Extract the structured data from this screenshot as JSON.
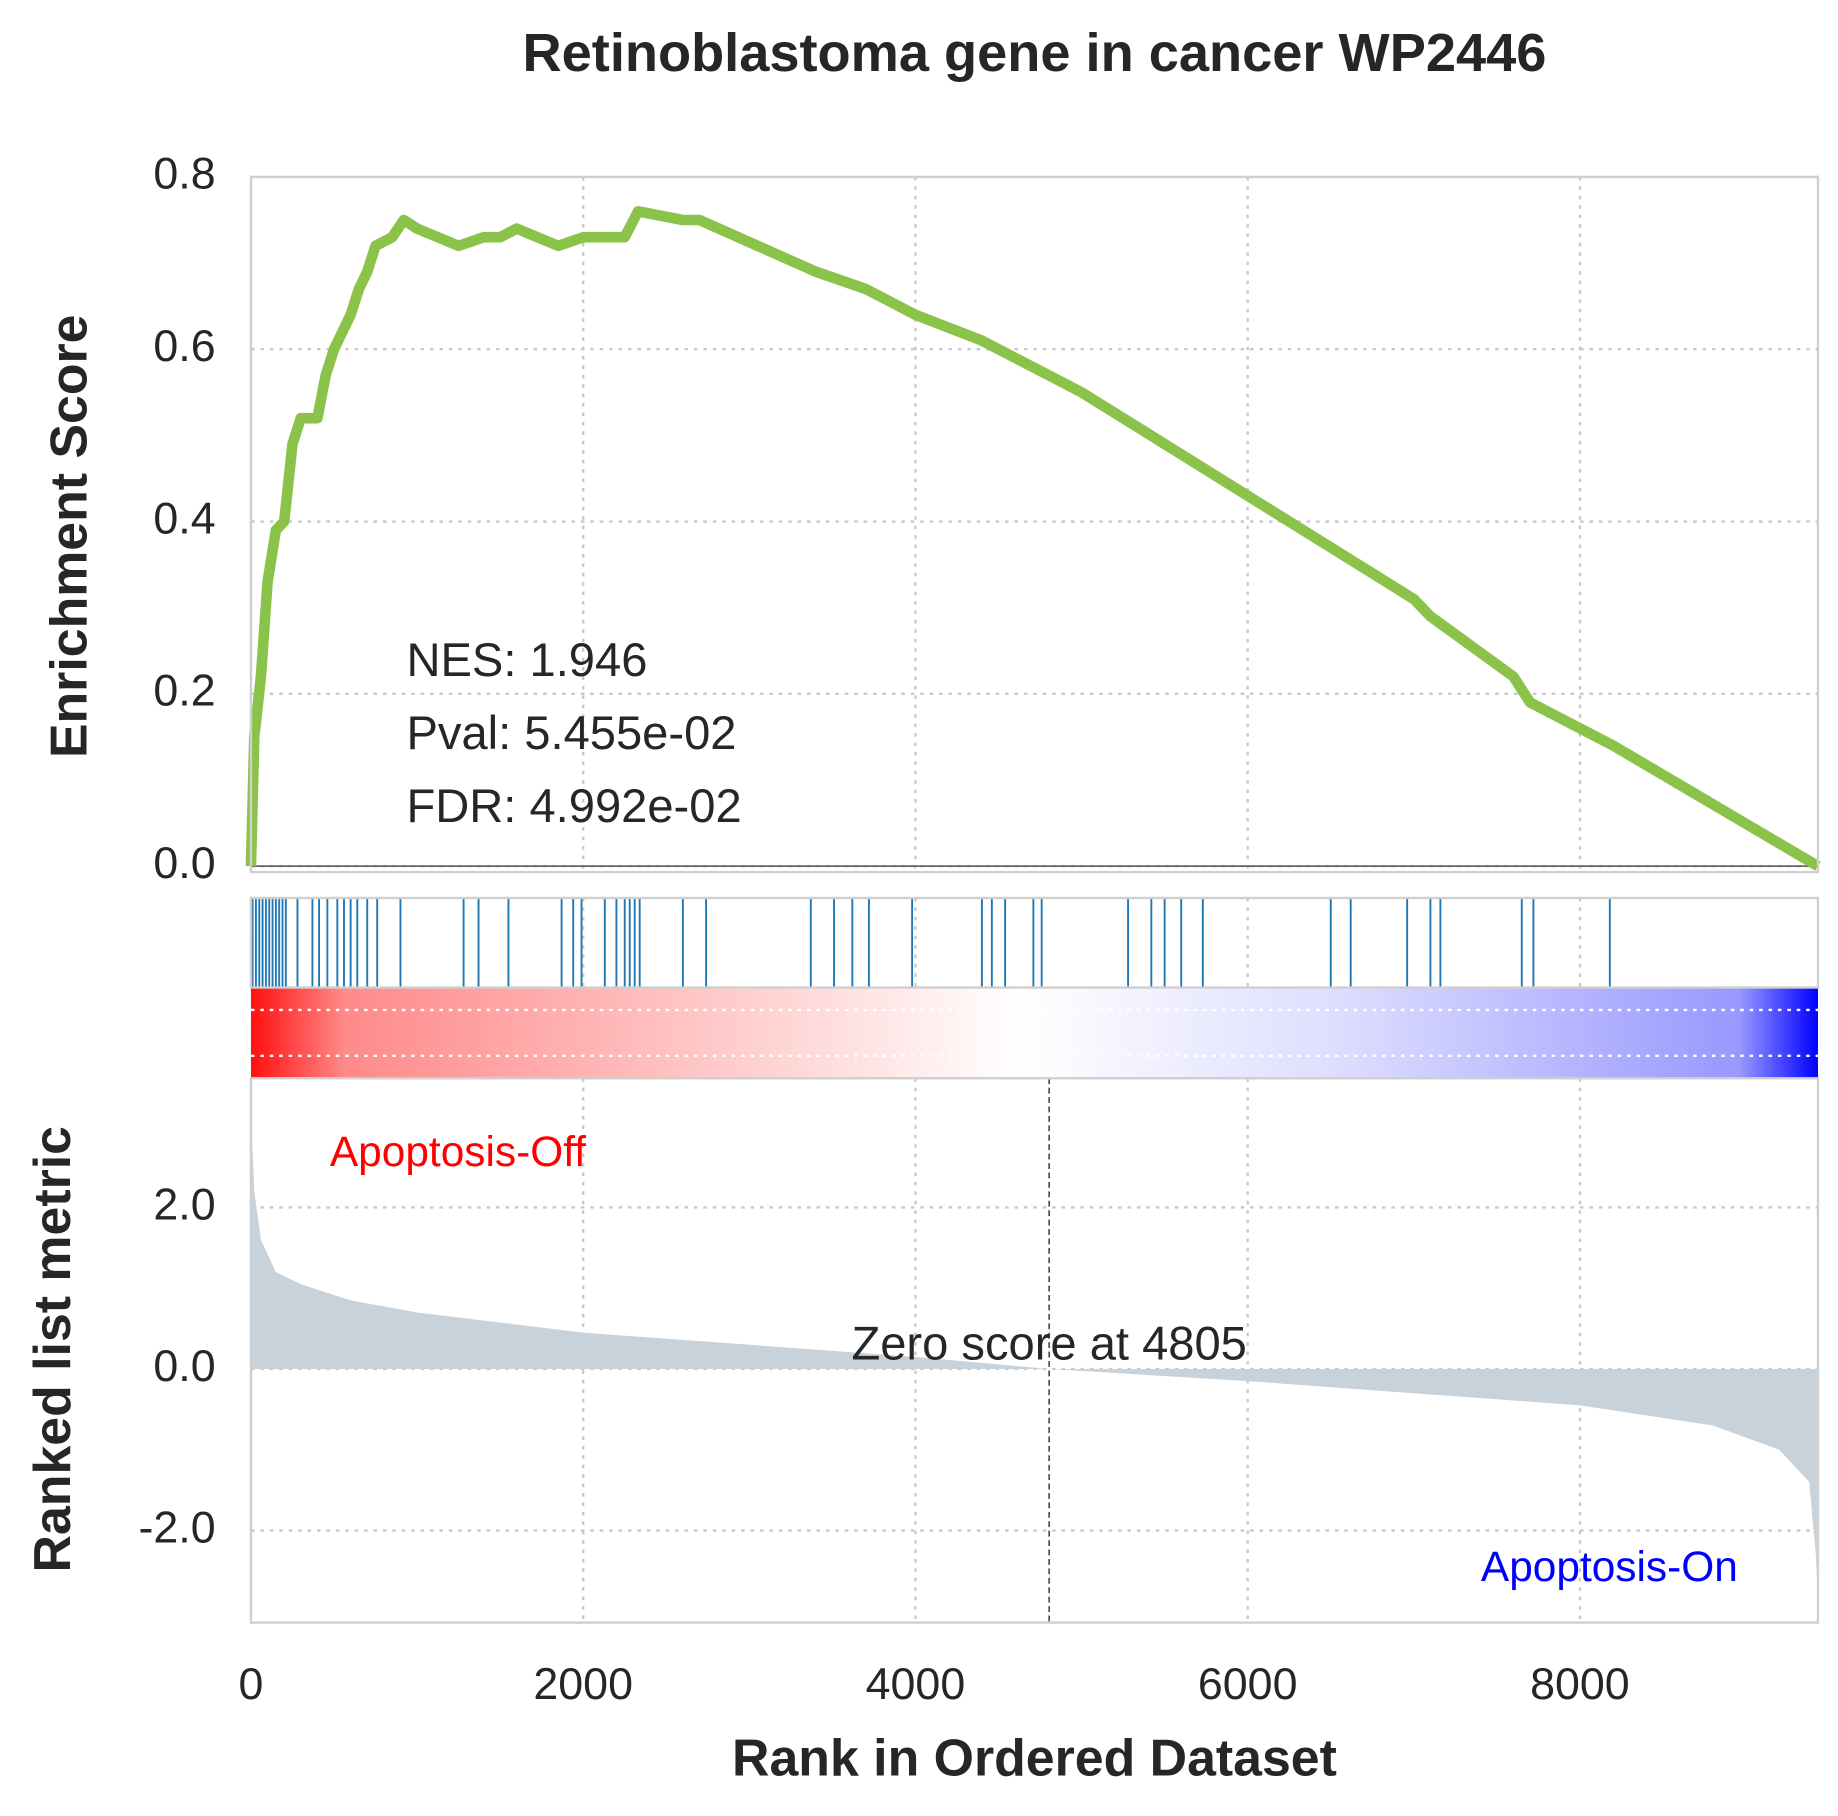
{
  "chart_data": [
    {
      "type": "line",
      "title": "Retinoblastoma gene in cancer WP2446",
      "ylabel": "Enrichment Score",
      "color": "#8bc34a",
      "x": [
        0,
        20,
        60,
        100,
        150,
        200,
        250,
        300,
        400,
        450,
        500,
        550,
        600,
        650,
        700,
        750,
        850,
        920,
        1000,
        1250,
        1400,
        1500,
        1600,
        1850,
        2000,
        2100,
        2250,
        2330,
        2600,
        2700,
        3050,
        3400,
        3700,
        4000,
        4400,
        5000,
        5500,
        6000,
        6500,
        7000,
        7100,
        7600,
        7700,
        8200,
        9433
      ],
      "values": [
        0,
        0.15,
        0.22,
        0.33,
        0.39,
        0.4,
        0.49,
        0.52,
        0.52,
        0.57,
        0.6,
        0.62,
        0.64,
        0.67,
        0.69,
        0.72,
        0.73,
        0.75,
        0.74,
        0.72,
        0.73,
        0.73,
        0.74,
        0.72,
        0.73,
        0.73,
        0.73,
        0.76,
        0.75,
        0.75,
        0.72,
        0.69,
        0.67,
        0.64,
        0.61,
        0.55,
        0.49,
        0.43,
        0.37,
        0.31,
        0.29,
        0.22,
        0.19,
        0.14,
        0
      ],
      "ylim": [
        0,
        0.8
      ],
      "yticks": [
        {
          "value": 0,
          "label": "0.0"
        },
        0.2,
        0.4,
        0.6,
        0.8
      ],
      "annotations": [
        "NES: 1.946",
        "Pval: 5.455e-02",
        "FDR: 4.992e-02"
      ],
      "grid": true
    },
    {
      "type": "rug",
      "color": "#1f77b4",
      "x": [
        10,
        30,
        50,
        70,
        90,
        110,
        130,
        150,
        170,
        190,
        210,
        280,
        370,
        410,
        460,
        520,
        560,
        600,
        640,
        700,
        760,
        900,
        1280,
        1370,
        1550,
        1870,
        1940,
        1990,
        2130,
        2200,
        2250,
        2280,
        2310,
        2340,
        2600,
        2740,
        3370,
        3510,
        3620,
        3720,
        3980,
        4400,
        4460,
        4540,
        4710,
        4760,
        5280,
        5420,
        5500,
        5600,
        5730,
        6500,
        6620,
        6960,
        7100,
        7160,
        7650,
        7720,
        8180
      ]
    },
    {
      "type": "area",
      "ylabel": "Ranked list metric",
      "xlabel": "Rank in Ordered Dataset",
      "color": "#c8d2da",
      "x": [
        0,
        20,
        60,
        150,
        300,
        600,
        1000,
        2000,
        3000,
        4000,
        4805,
        6000,
        7000,
        8000,
        8800,
        9200,
        9380,
        9420,
        9433
      ],
      "values": [
        3.2,
        2.2,
        1.6,
        1.2,
        1.05,
        0.85,
        0.7,
        0.45,
        0.3,
        0.15,
        0,
        -0.15,
        -0.3,
        -0.45,
        -0.7,
        -1.0,
        -1.4,
        -2.3,
        -2.8
      ],
      "xlim": [
        0,
        9433
      ],
      "xticks": [
        0,
        2000,
        4000,
        6000,
        8000
      ],
      "ylim": [
        -3.14,
        3.6
      ],
      "yticks": [
        {
          "value": 2,
          "label": "2.0"
        },
        {
          "value": 0,
          "label": "0.0"
        },
        {
          "value": -2,
          "label": "-2.0"
        }
      ],
      "annotations": [
        {
          "text": "Apoptosis-Off",
          "color": "#ff0000"
        },
        {
          "text": "Apoptosis-On",
          "color": "#0000ff"
        }
      ],
      "zero_score": {
        "text": "Zero score at 4805",
        "x": 4805
      },
      "grid": true
    }
  ]
}
